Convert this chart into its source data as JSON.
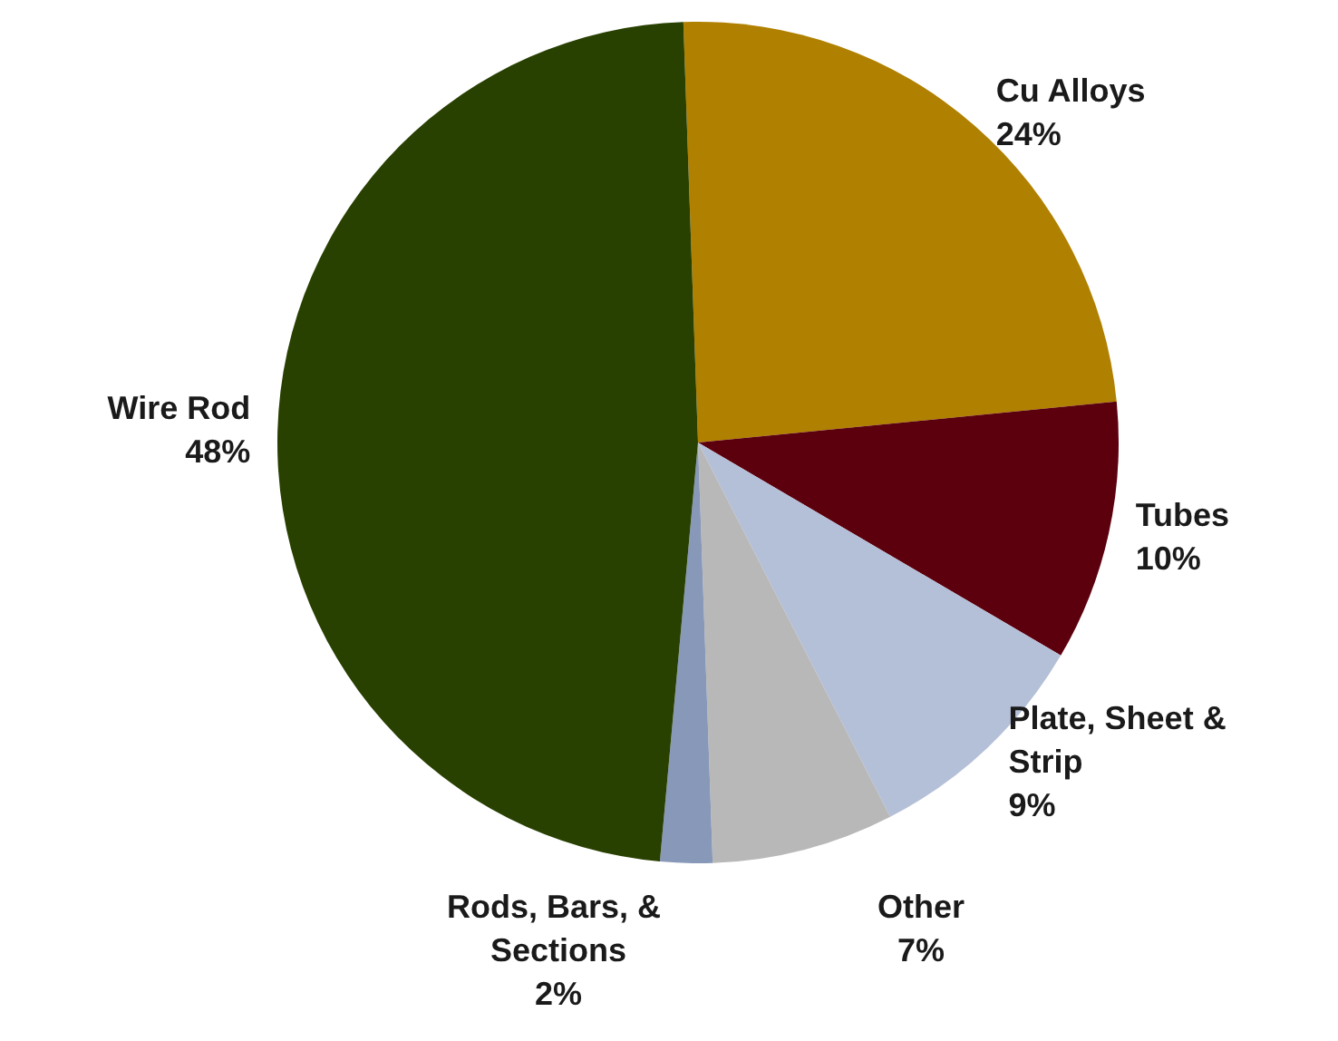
{
  "chart_data": {
    "type": "pie",
    "categories": [
      "Cu Alloys",
      "Tubes",
      "Plate, Sheet & Strip",
      "Other",
      "Rods, Bars, & Sections",
      "Wire Rod"
    ],
    "values": [
      24,
      10,
      9,
      7,
      2,
      48
    ],
    "value_labels": [
      "24%",
      "10%",
      "9%",
      "7%",
      "2%",
      "48%"
    ],
    "colors": [
      "#b08000",
      "#5c000e",
      "#b4c0d8",
      "#b8b8b8",
      "#8898b8",
      "#284000"
    ],
    "legend": false
  }
}
